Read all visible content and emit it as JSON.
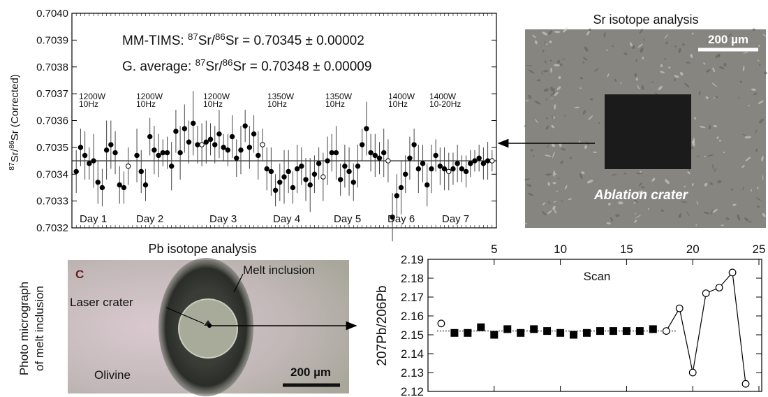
{
  "photos": {
    "sr": {
      "title": "Sr isotope analysis",
      "scale": "200 µm",
      "label": "Ablation crater"
    },
    "pb": {
      "title": "Pb isotope analysis",
      "side_label": [
        "Photo micrograph",
        "of melt inclusion"
      ],
      "panel": "C",
      "labels": [
        "Melt inclusion",
        "Laser crater",
        "Olivine"
      ],
      "scale": "200 µm"
    }
  },
  "chart_data": [
    {
      "type": "scatter",
      "ylabel": [
        {
          "sup": "87"
        },
        "Sr/",
        {
          "sup": "86"
        },
        "Sr (Corrected)"
      ],
      "annotations": [
        [
          "MM-TIMS:  ",
          {
            "sup": "87"
          },
          "Sr/",
          {
            "sup": "86"
          },
          "Sr = 0.70345 ± 0.00002"
        ],
        [
          "G. average:  ",
          {
            "sup": "87"
          },
          "Sr/",
          {
            "sup": "86"
          },
          "Sr = 0.70348 ± 0.00009"
        ]
      ],
      "conditions": [
        [
          "1200W",
          "10Hz"
        ],
        [
          "1200W",
          "10Hz"
        ],
        [
          "1200W",
          "10Hz"
        ],
        [
          "1350W",
          "10Hz"
        ],
        [
          "1350W",
          "10Hz"
        ],
        [
          "1400W",
          "10Hz"
        ],
        [
          "1400W",
          "10-20Hz"
        ]
      ],
      "days": [
        "Day 1",
        "Day 2",
        "Day 3",
        "Day 4",
        "Day 5",
        "Day 6",
        "Day 7"
      ],
      "xlim": [
        0,
        98
      ],
      "ylim": [
        0.7032,
        0.704
      ],
      "yticks": [
        0.7032,
        0.7033,
        0.7034,
        0.7035,
        0.7036,
        0.7037,
        0.7038,
        0.7039,
        {
          "value": 0.704,
          "label": "0.7040"
        }
      ],
      "reference_line": 0.70345,
      "series": [
        {
          "marker": "filled",
          "color": "#000000",
          "x": [
            1,
            2,
            3,
            4,
            5,
            6,
            7,
            8,
            9,
            10,
            11,
            12,
            15,
            16,
            17,
            18,
            19,
            20,
            21,
            22,
            23,
            24,
            25,
            26,
            27,
            28,
            29,
            31,
            32,
            33,
            34,
            35,
            36,
            37,
            38,
            39,
            40,
            41,
            42,
            43,
            45,
            46,
            47,
            48,
            49,
            50,
            51,
            52,
            53,
            54,
            55,
            56,
            57,
            59,
            60,
            61,
            62,
            63,
            64,
            65,
            66,
            67,
            68,
            69,
            70,
            71,
            72,
            74,
            75,
            76,
            77,
            78,
            79,
            80,
            81,
            82,
            83,
            84,
            85,
            86,
            88,
            89,
            90,
            91,
            92,
            93,
            94,
            95,
            96
          ],
          "values": [
            0.70341,
            0.7035,
            0.70347,
            0.70344,
            0.70345,
            0.70337,
            0.70335,
            0.70349,
            0.70351,
            0.70348,
            0.70336,
            0.70335,
            0.70347,
            0.70341,
            0.70336,
            0.70354,
            0.70349,
            0.70347,
            0.70348,
            0.70348,
            0.70343,
            0.70356,
            0.70348,
            0.70357,
            0.70352,
            0.70359,
            0.70351,
            0.70352,
            0.70353,
            0.70351,
            0.70355,
            0.7035,
            0.70349,
            0.70354,
            0.70346,
            0.70349,
            0.70358,
            0.7035,
            0.70355,
            0.70347,
            0.70342,
            0.70341,
            0.70334,
            0.70337,
            0.70339,
            0.70341,
            0.70335,
            0.70342,
            0.70343,
            0.70338,
            0.70336,
            0.7034,
            0.70344,
            0.70345,
            0.70348,
            0.70348,
            0.70338,
            0.70343,
            0.70341,
            0.70337,
            0.70343,
            0.70351,
            0.70357,
            0.70348,
            0.70347,
            0.70346,
            0.70348,
            0.70324,
            0.70332,
            0.70335,
            0.7034,
            0.70346,
            0.70351,
            0.70342,
            0.70344,
            0.70336,
            0.70342,
            0.70347,
            0.70343,
            0.70342,
            0.70342,
            0.70344,
            0.70342,
            0.70341,
            0.70344,
            0.70345,
            0.70346,
            0.70344,
            0.70345
          ],
          "errors": [
            8e-05,
            7e-05,
            9e-05,
            6e-05,
            0.0001,
            8e-05,
            7e-05,
            0.00011,
            9e-05,
            8e-05,
            7e-05,
            6e-05,
            0.0001,
            8e-05,
            6e-05,
            7e-05,
            9e-05,
            8e-05,
            5e-05,
            6e-05,
            9e-05,
            8e-05,
            0.0001,
            9e-05,
            8e-05,
            0.00012,
            7e-05,
            8e-05,
            6e-05,
            7e-05,
            9e-05,
            5e-05,
            6e-05,
            8e-05,
            7e-05,
            9e-05,
            6e-05,
            8e-05,
            7e-05,
            9e-05,
            8e-05,
            9e-05,
            6e-05,
            7e-05,
            0.0001,
            8e-05,
            6e-05,
            9e-05,
            7e-05,
            8e-05,
            0.0001,
            7e-05,
            6e-05,
            9e-05,
            7e-05,
            0.0001,
            6e-05,
            8e-05,
            9e-05,
            7e-05,
            8e-05,
            6e-05,
            0.0001,
            7e-05,
            8e-05,
            6e-05,
            9e-05,
            9e-05,
            8e-05,
            0.0001,
            7e-05,
            8e-05,
            6e-05,
            9e-05,
            7e-05,
            8e-05,
            9e-05,
            6e-05,
            7e-05,
            8e-05,
            6e-05,
            7e-05,
            5e-05,
            6e-05,
            5e-05,
            4e-05,
            5e-05,
            6e-05,
            7e-05
          ]
        },
        {
          "marker": "open",
          "color": "#000000",
          "x": [
            13,
            30,
            44,
            58,
            73,
            87,
            97
          ],
          "values": [
            0.70343,
            0.70351,
            0.70351,
            0.70339,
            0.70345,
            0.70341,
            0.70345
          ],
          "errors": [
            7e-05,
            8e-05,
            6e-05,
            9e-05,
            8e-05,
            7e-05,
            4e-05
          ]
        }
      ]
    },
    {
      "type": "line",
      "ylabel": "207Pb/206Pb",
      "annotation": "Scan",
      "xlim": [
        0,
        25
      ],
      "xticks": [
        5,
        10,
        15,
        20,
        25
      ],
      "ylim": [
        2.12,
        2.19
      ],
      "yticks": [
        2.12,
        2.13,
        2.14,
        2.15,
        2.16,
        2.17,
        2.18,
        2.19
      ],
      "mean_line": 2.152,
      "series": [
        {
          "marker": "open",
          "line": false,
          "color": "#000000",
          "x": [
            1
          ],
          "values": [
            2.156
          ]
        },
        {
          "marker": "square",
          "line": false,
          "color": "#000000",
          "x": [
            2,
            3,
            4,
            5,
            6,
            7,
            8,
            9,
            10,
            11,
            12,
            13,
            14,
            15,
            16,
            17
          ],
          "values": [
            2.151,
            2.151,
            2.154,
            2.15,
            2.153,
            2.151,
            2.153,
            2.152,
            2.151,
            2.15,
            2.151,
            2.152,
            2.152,
            2.152,
            2.152,
            2.153
          ]
        },
        {
          "marker": "open",
          "line": true,
          "color": "#000000",
          "x": [
            18,
            19,
            20,
            21,
            22,
            23,
            24
          ],
          "values": [
            2.152,
            2.164,
            2.13,
            2.172,
            2.175,
            2.183,
            2.124
          ]
        }
      ]
    }
  ]
}
